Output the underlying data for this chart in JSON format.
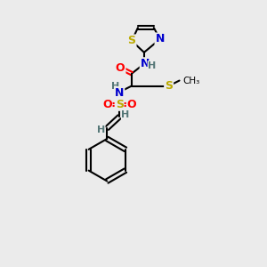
{
  "background_color": "#ebebeb",
  "colors": {
    "C": "#000000",
    "N": "#0000cc",
    "O": "#ff0000",
    "S_thiazole": "#bbaa00",
    "S_sulfo": "#bbaa00",
    "S_met": "#bbaa00",
    "H": "#557777",
    "bond": "#000000"
  },
  "layout": {
    "figsize": [
      3.0,
      3.0
    ],
    "dpi": 100,
    "xlim": [
      0,
      300
    ],
    "ylim": [
      0,
      300
    ]
  }
}
